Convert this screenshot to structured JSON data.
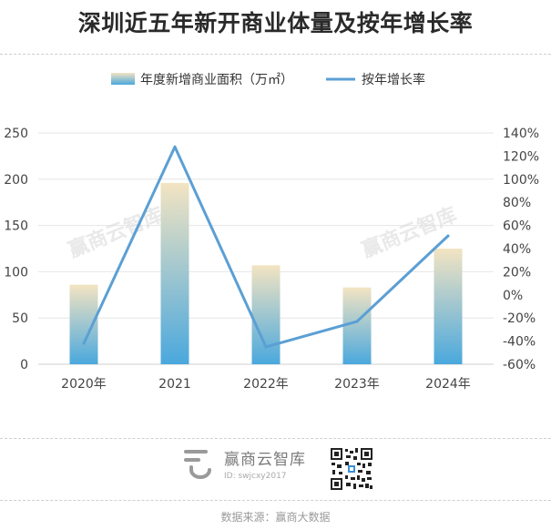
{
  "title": "深圳近五年新开商业体量及按年增长率",
  "watermark": "赢商云智库",
  "chart_data": {
    "type": "bar+line",
    "categories": [
      "2020年",
      "2021",
      "2022年",
      "2023年",
      "2024年"
    ],
    "series": [
      {
        "name": "年度新增商业面积（万㎡）",
        "type": "bar",
        "axis": "left",
        "values": [
          86,
          196,
          107,
          83,
          125
        ],
        "gradient_top": "#f3e4c2",
        "gradient_bottom": "#4aa8dd"
      },
      {
        "name": "按年增长率",
        "type": "line",
        "axis": "right",
        "values": [
          -42,
          128,
          -45,
          -23,
          51
        ],
        "color": "#5b9fd4"
      }
    ],
    "y_left": {
      "min": 0,
      "max": 250,
      "ticks": [
        0,
        50,
        100,
        150,
        200,
        250
      ]
    },
    "y_right": {
      "min": -60,
      "max": 140,
      "ticks": [
        -60,
        -40,
        -20,
        0,
        20,
        40,
        60,
        80,
        100,
        120,
        140
      ],
      "tick_labels": [
        "-60%",
        "-40%",
        "-20%",
        "0%",
        "20%",
        "40%",
        "60%",
        "80%",
        "100%",
        "120%",
        "140%"
      ]
    },
    "grid": true,
    "legend": "top-center"
  },
  "footer": {
    "brand_name": "赢商云智库",
    "brand_id": "ID: swjcxy2017",
    "source": "数据来源：赢商大数据"
  }
}
